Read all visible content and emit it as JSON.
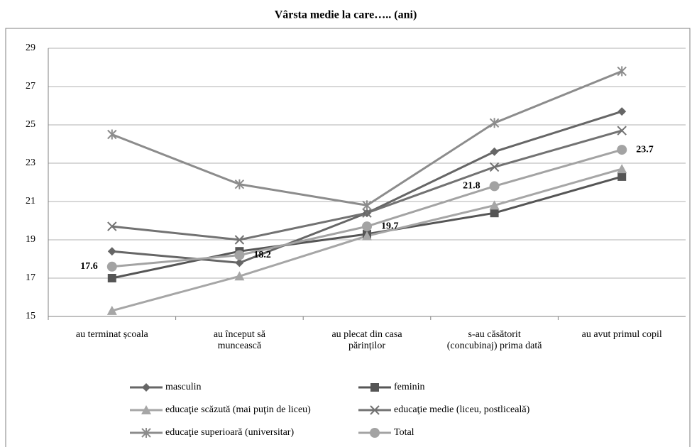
{
  "chart_data": {
    "type": "line",
    "title": "Vârsta medie la care….. (ani)",
    "categories": [
      "au terminat școala",
      "au început să\nmuncească",
      "au plecat din casa\npărinților",
      "s-au căsătorit\n(concubinaj) prima dată",
      "au avut primul copil"
    ],
    "ylim": [
      15,
      29
    ],
    "yticks": [
      15,
      17,
      19,
      21,
      23,
      25,
      27,
      29
    ],
    "grid": true,
    "series": [
      {
        "name": "masculin",
        "color": "#666666",
        "marker": "diamond",
        "values": [
          18.4,
          17.8,
          20.4,
          23.6,
          25.7
        ]
      },
      {
        "name": "feminin",
        "color": "#555555",
        "marker": "square",
        "values": [
          17.0,
          18.4,
          19.3,
          20.4,
          22.3
        ]
      },
      {
        "name": "educaţie scăzută (mai puţin de liceu)",
        "color": "#a6a6a6",
        "marker": "triangle",
        "values": [
          15.3,
          17.1,
          19.2,
          20.8,
          22.7
        ]
      },
      {
        "name": "educaţie medie (liceu, postliceală)",
        "color": "#727272",
        "marker": "x",
        "values": [
          19.7,
          19.0,
          20.4,
          22.8,
          24.7
        ]
      },
      {
        "name": "educaţie superioară (universitar)",
        "color": "#8c8c8c",
        "marker": "star",
        "values": [
          24.5,
          21.9,
          20.8,
          25.1,
          27.8
        ]
      },
      {
        "name": "Total",
        "color": "#a3a3a3",
        "marker": "circle",
        "values": [
          17.6,
          18.2,
          19.7,
          21.8,
          23.7
        ],
        "value_labels": [
          "17.6",
          "18.2",
          "19.7",
          "21.8",
          "23.7"
        ]
      }
    ]
  }
}
